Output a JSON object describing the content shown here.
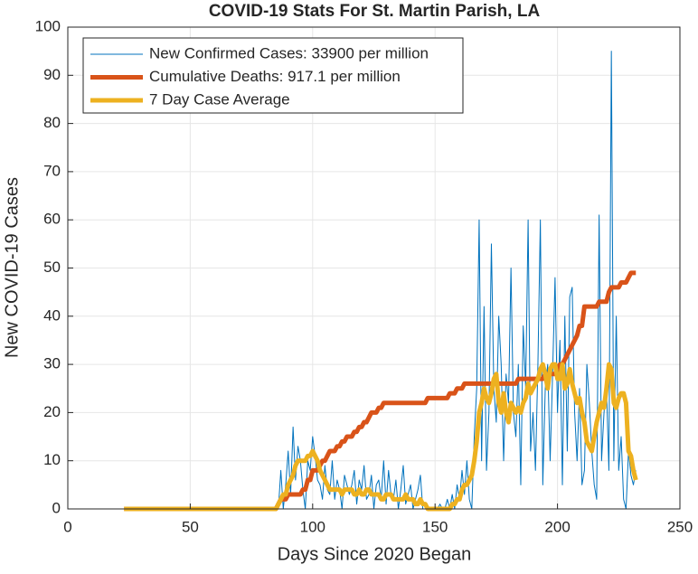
{
  "chart_data": {
    "type": "line",
    "title": "COVID-19 Stats For St. Martin Parish, LA",
    "x_label": "Days Since 2020 Began",
    "y_label": "New COVID-19 Cases",
    "xlim": [
      0,
      250
    ],
    "xticks": [
      0,
      50,
      100,
      150,
      200,
      250
    ],
    "ylim": [
      0,
      100
    ],
    "yticks": [
      0,
      10,
      20,
      30,
      40,
      50,
      60,
      70,
      80,
      90,
      100
    ],
    "grid": true,
    "legend_position": "upper-left",
    "x": [
      23,
      85,
      86,
      87,
      88,
      89,
      90,
      91,
      92,
      93,
      94,
      95,
      96,
      97,
      98,
      99,
      100,
      101,
      102,
      103,
      104,
      105,
      106,
      107,
      108,
      109,
      110,
      111,
      112,
      113,
      114,
      115,
      116,
      117,
      118,
      119,
      120,
      121,
      122,
      123,
      124,
      125,
      126,
      127,
      128,
      129,
      130,
      131,
      132,
      133,
      134,
      135,
      136,
      137,
      138,
      139,
      140,
      141,
      142,
      143,
      144,
      145,
      146,
      147,
      148,
      149,
      150,
      151,
      152,
      153,
      154,
      155,
      156,
      157,
      158,
      159,
      160,
      161,
      162,
      163,
      164,
      165,
      166,
      167,
      168,
      169,
      170,
      171,
      172,
      173,
      174,
      175,
      176,
      177,
      178,
      179,
      180,
      181,
      182,
      183,
      184,
      185,
      186,
      187,
      188,
      189,
      190,
      191,
      192,
      193,
      194,
      195,
      196,
      197,
      198,
      199,
      200,
      201,
      202,
      203,
      204,
      205,
      206,
      207,
      208,
      209,
      210,
      211,
      212,
      213,
      214,
      215,
      216,
      217,
      218,
      219,
      220,
      221,
      222,
      223,
      224,
      225,
      226,
      227,
      228,
      229,
      230,
      231,
      232
    ],
    "series": [
      {
        "name": "New Confirmed Cases: 33900 per million",
        "color": "#0072BD",
        "width": 1,
        "values": [
          0,
          0,
          0,
          8,
          0,
          5,
          12,
          3,
          17,
          6,
          13,
          10,
          4,
          0,
          10,
          8,
          15,
          11,
          6,
          5,
          2,
          9,
          4,
          3,
          10,
          2,
          6,
          4,
          0,
          7,
          5,
          3,
          5,
          8,
          1,
          6,
          4,
          9,
          2,
          3,
          7,
          0,
          5,
          6,
          2,
          10,
          1,
          8,
          3,
          2,
          6,
          0,
          4,
          9,
          1,
          3,
          5,
          0,
          2,
          4,
          7,
          0,
          0,
          0,
          0,
          0,
          0,
          0,
          1,
          0,
          0,
          2,
          0,
          3,
          0,
          5,
          2,
          8,
          3,
          10,
          2,
          0,
          15,
          25,
          60,
          10,
          42,
          8,
          20,
          55,
          25,
          18,
          40,
          30,
          10,
          28,
          22,
          50,
          20,
          15,
          30,
          5,
          38,
          25,
          60,
          12,
          20,
          8,
          30,
          60,
          5,
          25,
          30,
          10,
          28,
          48,
          20,
          35,
          5,
          40,
          12,
          44,
          46,
          20,
          10,
          25,
          5,
          8,
          30,
          22,
          12,
          5,
          2,
          61,
          10,
          20,
          25,
          8,
          95,
          10,
          40,
          8,
          15,
          2,
          0,
          12,
          7,
          5,
          8
        ]
      },
      {
        "name": "Cumulative Deaths: 917.1 per million",
        "color": "#D95319",
        "width": 5,
        "values": [
          0,
          0,
          1,
          2,
          2,
          2,
          3,
          3,
          3,
          3,
          3,
          3,
          4,
          4,
          6,
          6,
          8,
          8,
          8,
          9,
          10,
          10,
          11,
          12,
          12,
          12,
          13,
          13,
          14,
          14,
          15,
          15,
          15,
          16,
          16,
          17,
          17,
          18,
          18,
          19,
          20,
          20,
          20,
          21,
          21,
          22,
          22,
          22,
          22,
          22,
          22,
          22,
          22,
          22,
          22,
          22,
          22,
          22,
          22,
          22,
          22,
          22,
          22,
          23,
          23,
          23,
          23,
          23,
          23,
          23,
          23,
          23,
          24,
          24,
          24,
          25,
          25,
          25,
          26,
          26,
          26,
          26,
          26,
          26,
          26,
          26,
          26,
          26,
          26,
          26,
          26,
          26,
          26,
          26,
          26,
          26,
          26,
          26,
          26,
          26,
          27,
          27,
          27,
          27,
          27,
          27,
          27,
          27,
          27,
          27,
          27,
          28,
          28,
          28,
          28,
          28,
          29,
          30,
          30,
          31,
          32,
          33,
          34,
          35,
          36,
          38,
          38,
          42,
          42,
          42,
          42,
          42,
          42,
          43,
          43,
          43,
          43,
          45,
          46,
          46,
          46,
          46,
          47,
          47,
          47,
          48,
          49,
          49,
          49
        ]
      },
      {
        "name": "7 Day Case Average",
        "color": "#EDB120",
        "width": 5,
        "values": [
          0,
          0,
          1,
          2,
          3,
          3,
          5,
          6,
          7,
          9,
          10,
          10,
          10,
          10,
          11,
          11,
          12,
          11,
          10,
          8,
          7,
          6,
          5,
          4,
          4,
          4,
          4,
          4,
          3,
          4,
          4,
          4,
          4,
          3,
          3,
          4,
          3,
          3,
          4,
          4,
          3,
          3,
          3,
          3,
          2,
          2,
          3,
          3,
          3,
          2,
          2,
          2,
          2,
          2,
          3,
          2,
          2,
          2,
          1,
          1,
          2,
          1,
          1,
          0,
          0,
          0,
          0,
          0,
          0,
          0,
          0,
          0,
          0,
          1,
          1,
          2,
          2,
          4,
          5,
          5,
          6,
          7,
          10,
          14,
          20,
          22,
          25,
          23,
          22,
          24,
          27,
          28,
          22,
          20,
          24,
          20,
          18,
          22,
          21,
          20,
          21,
          20,
          22,
          23,
          26,
          24,
          25,
          26,
          27,
          29,
          30,
          28,
          25,
          29,
          30,
          30,
          27,
          27,
          30,
          25,
          26,
          29,
          26,
          24,
          22,
          23,
          20,
          18,
          14,
          13,
          12,
          15,
          18,
          20,
          22,
          21,
          25,
          30,
          29,
          22,
          21,
          23,
          24,
          24,
          22,
          12,
          11,
          8,
          6
        ]
      }
    ]
  }
}
